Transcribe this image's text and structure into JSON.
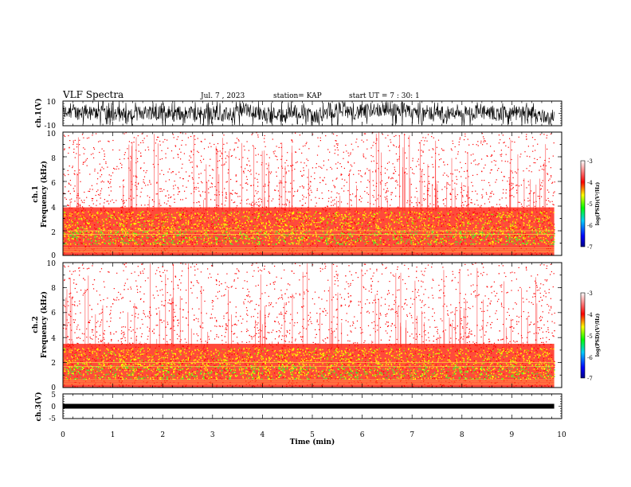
{
  "header": {
    "title": "VLF Spectra",
    "date": "Jul. 7 , 2023",
    "station": "station= KAP",
    "start": "start UT = 7 : 30: 1"
  },
  "chart_data": [
    {
      "id": "ch1_waveform",
      "type": "line",
      "ylabel": "ch.1(V)",
      "yticks": [
        "10",
        "-10"
      ],
      "ylim": [
        -10,
        10
      ],
      "xlim": [
        0,
        10
      ],
      "data_xmax": 9.85,
      "color": "#000000"
    },
    {
      "id": "ch1_spectrogram",
      "type": "heatmap",
      "ylabel": "ch.1",
      "ylabel2": "Frequency (kHz)",
      "yticks": [
        "0",
        "2",
        "4",
        "6",
        "8",
        "10"
      ],
      "ylim": [
        0,
        10
      ],
      "xlim": [
        0,
        10
      ],
      "data_xmax": 9.85,
      "yellow_band_khz": [
        0.9,
        3.6
      ],
      "colorbar": {
        "ticks": [
          "-3",
          "-4",
          "-5",
          "-6",
          "-7"
        ],
        "range": [
          -7,
          -3
        ],
        "label": "log(PSD)(V²/Hz)",
        "colors": [
          "#000088",
          "#0000ff",
          "#00ccff",
          "#00ff00",
          "#ffff00",
          "#ff0000",
          "#ffffff"
        ]
      }
    },
    {
      "id": "ch2_spectrogram",
      "type": "heatmap",
      "ylabel": "ch.2",
      "ylabel2": "Frequency (kHz)",
      "yticks": [
        "0",
        "2",
        "4",
        "6",
        "8",
        "10"
      ],
      "ylim": [
        0,
        10
      ],
      "xlim": [
        0,
        10
      ],
      "data_xmax": 9.85,
      "yellow_band_khz": [
        0.7,
        3.2
      ],
      "colorbar": {
        "ticks": [
          "-3",
          "-4",
          "-5",
          "-6",
          "-7"
        ],
        "range": [
          -7,
          -3
        ],
        "label": "log(PSD)(V²/Hz)",
        "colors": [
          "#000088",
          "#0000ff",
          "#00ccff",
          "#00ff00",
          "#ffff00",
          "#ff0000",
          "#ffffff"
        ]
      }
    },
    {
      "id": "ch3_waveform",
      "type": "line",
      "ylabel": "ch.3(V)",
      "yticks": [
        "5",
        "0",
        "-5"
      ],
      "ylim": [
        -5,
        5
      ],
      "xlim": [
        0,
        10
      ],
      "data_xmax": 9.85,
      "level": 0,
      "color": "#000000"
    }
  ],
  "xaxis": {
    "ticks": [
      "0",
      "1",
      "2",
      "3",
      "4",
      "5",
      "6",
      "7",
      "8",
      "9",
      "10"
    ],
    "label": "Time (min)"
  }
}
